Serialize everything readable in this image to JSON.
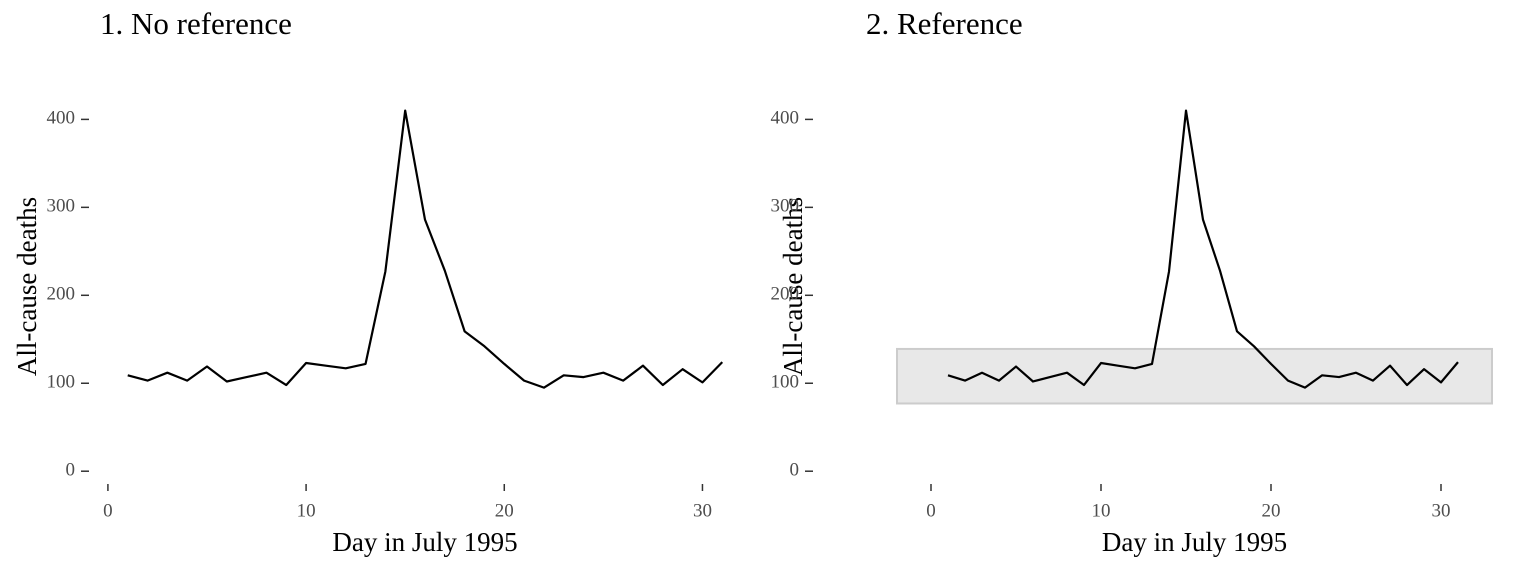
{
  "chart_data": [
    {
      "type": "line",
      "title": "1. No reference",
      "x_label": "Day in July 1995",
      "y_label": "All-cause deaths",
      "x": [
        1,
        2,
        3,
        4,
        5,
        6,
        7,
        8,
        9,
        10,
        11,
        12,
        13,
        14,
        15,
        16,
        17,
        18,
        19,
        20,
        21,
        22,
        23,
        24,
        25,
        26,
        27,
        28,
        29,
        30,
        31
      ],
      "values": [
        109,
        103,
        112,
        103,
        119,
        102,
        107,
        112,
        98,
        123,
        120,
        117,
        122,
        227,
        410,
        286,
        228,
        159,
        142,
        122,
        103,
        95,
        109,
        107,
        112,
        103,
        120,
        98,
        116,
        101,
        124
      ],
      "color": "#000000",
      "xlim": [
        -0.5,
        32.5
      ],
      "xticks": [
        0,
        10,
        20,
        30
      ],
      "ylim": [
        -10,
        430
      ],
      "yticks": [
        0,
        100,
        200,
        300,
        400
      ],
      "grid": false
    },
    {
      "type": "line",
      "title": "2. Reference",
      "x_label": "Day in July 1995",
      "y_label": "All-cause deaths",
      "x": [
        1,
        2,
        3,
        4,
        5,
        6,
        7,
        8,
        9,
        10,
        11,
        12,
        13,
        14,
        15,
        16,
        17,
        18,
        19,
        20,
        21,
        22,
        23,
        24,
        25,
        26,
        27,
        28,
        29,
        30,
        31
      ],
      "values": [
        109,
        103,
        112,
        103,
        119,
        102,
        107,
        112,
        98,
        123,
        120,
        117,
        122,
        227,
        410,
        286,
        228,
        159,
        142,
        122,
        103,
        95,
        109,
        107,
        112,
        103,
        120,
        98,
        116,
        101,
        124
      ],
      "color": "#000000",
      "reference_band": [
        77,
        139
      ],
      "band_color": "#e8e8e8",
      "xlim": [
        -2,
        33
      ],
      "xticks": [
        0,
        10,
        20,
        30
      ],
      "ylim": [
        -10,
        430
      ],
      "yticks": [
        0,
        100,
        200,
        300,
        400
      ],
      "grid": false
    }
  ]
}
